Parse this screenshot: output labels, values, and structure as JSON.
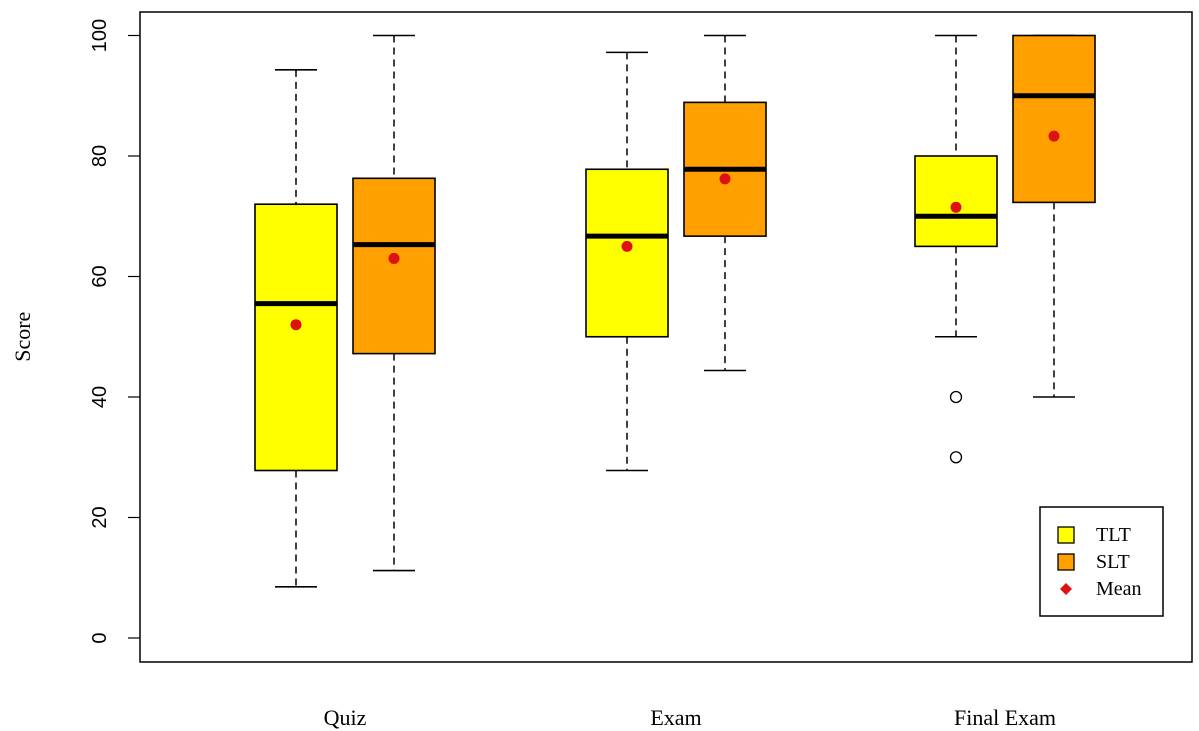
{
  "chart_data": {
    "type": "boxplot",
    "title": "",
    "xlabel": "",
    "ylabel": "Score",
    "ylim": [
      -4,
      104
    ],
    "yticks": [
      0,
      20,
      40,
      60,
      80,
      100
    ],
    "grid": false,
    "legend_position": "bottom-right",
    "colors": {
      "TLT": "#ffff00",
      "SLT": "#ff9f00",
      "mean": "#dd1111"
    },
    "categories": [
      "Quiz",
      "Exam",
      "Final Exam"
    ],
    "series": [
      {
        "name": "TLT",
        "color": "#ffff00",
        "boxes": [
          {
            "min": 8.5,
            "q1": 27.8,
            "median": 55.5,
            "q3": 72,
            "max": 94.3,
            "mean": 52,
            "outliers": []
          },
          {
            "min": 27.8,
            "q1": 50,
            "median": 66.7,
            "q3": 77.8,
            "max": 97.2,
            "mean": 65,
            "outliers": []
          },
          {
            "min": 50,
            "q1": 65,
            "median": 70,
            "q3": 80,
            "max": 100,
            "mean": 71.5,
            "outliers": [
              40,
              30
            ]
          }
        ]
      },
      {
        "name": "SLT",
        "color": "#ff9f00",
        "boxes": [
          {
            "min": 11.2,
            "q1": 47.2,
            "median": 65.3,
            "q3": 76.3,
            "max": 100,
            "mean": 63,
            "outliers": []
          },
          {
            "min": 44.4,
            "q1": 66.7,
            "median": 77.8,
            "q3": 88.9,
            "max": 100,
            "mean": 76.2,
            "outliers": []
          },
          {
            "min": 40,
            "q1": 72.3,
            "median": 90,
            "q3": 100,
            "max": 100,
            "mean": 83.3,
            "outliers": []
          }
        ]
      }
    ],
    "legend": [
      {
        "label": "TLT",
        "kind": "box",
        "color": "#ffff00"
      },
      {
        "label": "SLT",
        "kind": "box",
        "color": "#ff9f00"
      },
      {
        "label": "Mean",
        "kind": "diamond",
        "color": "#dd1111"
      }
    ]
  }
}
